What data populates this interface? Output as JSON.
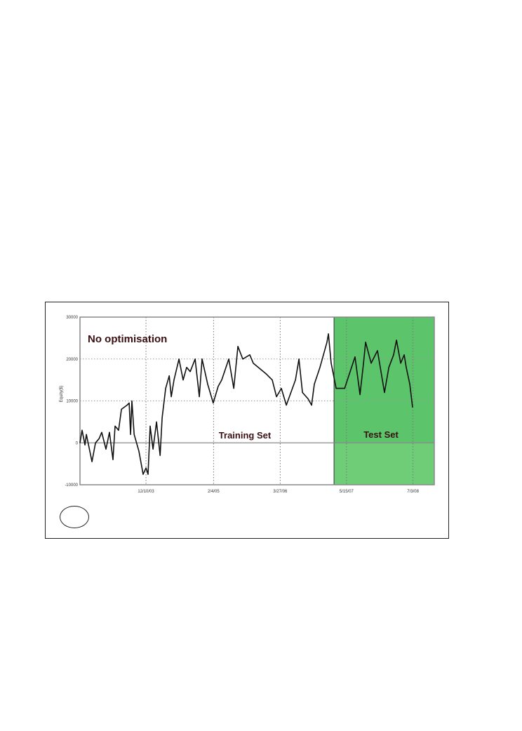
{
  "chart_data": {
    "type": "line",
    "title": "No optimisation",
    "xlabel": "",
    "ylabel": "Equity($)",
    "ylim": [
      -10000,
      30000
    ],
    "xlim": [
      "2002-10-24",
      "2008-11-13"
    ],
    "yticks": [
      -10000,
      0,
      10000,
      20000,
      30000
    ],
    "ytick_labels": [
      "-10000",
      "0",
      "10000",
      "20000",
      "30000"
    ],
    "xticks": [
      "2003-12-10",
      "2005-02-04",
      "2006-03-27",
      "2007-05-15",
      "2008-07-03"
    ],
    "xtick_labels": [
      "12/10/03",
      "2/4/05",
      "3/27/06",
      "5/15/07",
      "7/3/08"
    ],
    "grid": true,
    "regions": [
      {
        "label": "Training Set",
        "start": "2002-10-24",
        "end": "2007-02-26",
        "color": "#ffffff"
      },
      {
        "label": "Test Set",
        "start": "2007-02-26",
        "end": "2008-11-13",
        "color": "#5cc46a"
      }
    ],
    "series": [
      {
        "color": "#111111",
        "points": [
          [
            "2002-10-24",
            0
          ],
          [
            "2002-11-06",
            3000
          ],
          [
            "2002-11-24",
            -500
          ],
          [
            "2002-12-03",
            2000
          ],
          [
            "2003-01-07",
            -4500
          ],
          [
            "2003-01-29",
            0
          ],
          [
            "2003-02-20",
            1000
          ],
          [
            "2003-03-09",
            2500
          ],
          [
            "2003-04-04",
            -1500
          ],
          [
            "2003-04-26",
            2500
          ],
          [
            "2003-05-18",
            -4000
          ],
          [
            "2003-05-31",
            4000
          ],
          [
            "2003-06-22",
            3000
          ],
          [
            "2003-07-10",
            8000
          ],
          [
            "2003-08-14",
            9000
          ],
          [
            "2003-08-27",
            9500
          ],
          [
            "2003-09-05",
            2000
          ],
          [
            "2003-09-13",
            10000
          ],
          [
            "2003-09-27",
            2000
          ],
          [
            "2003-10-27",
            -2000
          ],
          [
            "2003-11-22",
            -7500
          ],
          [
            "2003-12-10",
            -6000
          ],
          [
            "2003-12-23",
            -7500
          ],
          [
            "2004-01-05",
            4000
          ],
          [
            "2004-01-23",
            -1500
          ],
          [
            "2004-02-14",
            5000
          ],
          [
            "2004-03-07",
            -3000
          ],
          [
            "2004-03-20",
            6000
          ],
          [
            "2004-04-11",
            13000
          ],
          [
            "2004-05-03",
            16000
          ],
          [
            "2004-05-16",
            11000
          ],
          [
            "2004-06-02",
            15000
          ],
          [
            "2004-07-03",
            20000
          ],
          [
            "2004-07-29",
            15000
          ],
          [
            "2004-08-20",
            18000
          ],
          [
            "2004-09-11",
            17000
          ],
          [
            "2004-10-12",
            20000
          ],
          [
            "2004-11-07",
            11000
          ],
          [
            "2004-11-24",
            20000
          ],
          [
            "2004-12-29",
            14000
          ],
          [
            "2005-02-02",
            9500
          ],
          [
            "2005-03-05",
            13500
          ],
          [
            "2005-03-27",
            15000
          ],
          [
            "2005-05-10",
            20000
          ],
          [
            "2005-06-10",
            13000
          ],
          [
            "2005-07-06",
            23000
          ],
          [
            "2005-08-05",
            20000
          ],
          [
            "2005-09-18",
            21000
          ],
          [
            "2005-10-10",
            19000
          ],
          [
            "2005-12-28",
            16500
          ],
          [
            "2006-02-05",
            15000
          ],
          [
            "2006-03-04",
            11000
          ],
          [
            "2006-04-03",
            13000
          ],
          [
            "2006-05-04",
            9000
          ],
          [
            "2006-06-30",
            15000
          ],
          [
            "2006-07-22",
            20000
          ],
          [
            "2006-08-13",
            12000
          ],
          [
            "2006-09-17",
            10500
          ],
          [
            "2006-10-09",
            9000
          ],
          [
            "2006-10-26",
            14000
          ],
          [
            "2006-11-30",
            18000
          ],
          [
            "2006-12-22",
            21000
          ],
          [
            "2007-01-13",
            24000
          ],
          [
            "2007-01-22",
            26000
          ],
          [
            "2007-02-08",
            19000
          ],
          [
            "2007-03-11",
            13000
          ],
          [
            "2007-05-03",
            13000
          ],
          [
            "2007-06-15",
            18000
          ],
          [
            "2007-07-07",
            20500
          ],
          [
            "2007-08-07",
            11500
          ],
          [
            "2007-08-29",
            19000
          ],
          [
            "2007-09-11",
            24000
          ],
          [
            "2007-10-16",
            19000
          ],
          [
            "2007-11-24",
            22000
          ],
          [
            "2008-01-07",
            12000
          ],
          [
            "2008-02-03",
            18000
          ],
          [
            "2008-03-04",
            21000
          ],
          [
            "2008-03-22",
            24500
          ],
          [
            "2008-04-17",
            19000
          ],
          [
            "2008-05-09",
            21000
          ],
          [
            "2008-05-22",
            18000
          ],
          [
            "2008-06-13",
            14000
          ],
          [
            "2008-06-30",
            8500
          ]
        ]
      }
    ]
  }
}
